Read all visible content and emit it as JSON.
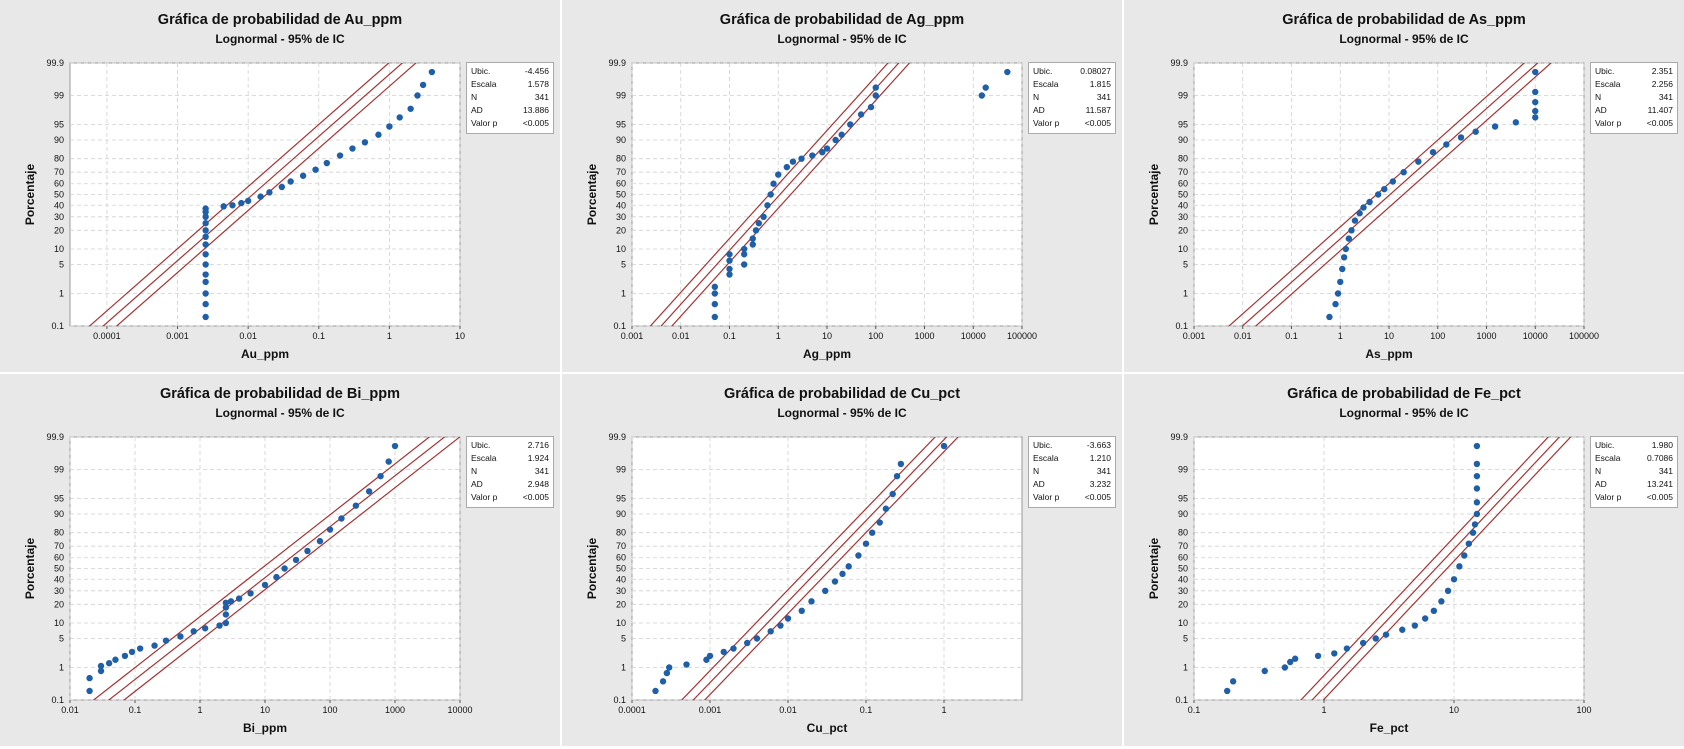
{
  "chart_data": [
    {
      "type": "scatter",
      "title": "Gráfica de probabilidad de Au_ppm",
      "subtitle": "Lognormal - 95% de IC",
      "xlabel": "Au_ppm",
      "ylabel": "Porcentaje",
      "x_scale": "log",
      "y_scale": "probability",
      "xlim": [
        3e-05,
        10
      ],
      "x_ticks": [
        "0.0001",
        "0.001",
        "0.01",
        "0.1",
        "1",
        "10"
      ],
      "x_tick_values": [
        0.0001,
        0.001,
        0.01,
        0.1,
        1,
        10
      ],
      "y_ticks": [
        "0.1",
        "1",
        "5",
        "10",
        "20",
        "30",
        "40",
        "50",
        "60",
        "70",
        "80",
        "90",
        "95",
        "99",
        "99.9"
      ],
      "stats": {
        "loc": "-4.456",
        "scale": "1.578",
        "n": "341",
        "ad": "13.886",
        "p": "<0.005"
      },
      "loc": -4.456,
      "scale": 1.578,
      "points": [
        [
          0.0025,
          0.2
        ],
        [
          0.0025,
          0.5
        ],
        [
          0.0025,
          1
        ],
        [
          0.0025,
          2
        ],
        [
          0.0025,
          3
        ],
        [
          0.0025,
          5
        ],
        [
          0.0025,
          8
        ],
        [
          0.0025,
          12
        ],
        [
          0.0025,
          16
        ],
        [
          0.0025,
          20
        ],
        [
          0.0025,
          25
        ],
        [
          0.0025,
          30
        ],
        [
          0.0025,
          34
        ],
        [
          0.0025,
          37
        ],
        [
          0.0045,
          39
        ],
        [
          0.006,
          40
        ],
        [
          0.008,
          42
        ],
        [
          0.01,
          44
        ],
        [
          0.015,
          48
        ],
        [
          0.02,
          52
        ],
        [
          0.03,
          57
        ],
        [
          0.04,
          62
        ],
        [
          0.06,
          67
        ],
        [
          0.09,
          72
        ],
        [
          0.13,
          77
        ],
        [
          0.2,
          82
        ],
        [
          0.3,
          86
        ],
        [
          0.45,
          89
        ],
        [
          0.7,
          92
        ],
        [
          1.0,
          94.5
        ],
        [
          1.4,
          96.5
        ],
        [
          2.0,
          97.8
        ],
        [
          2.5,
          99
        ],
        [
          3.0,
          99.5
        ],
        [
          4.0,
          99.8
        ]
      ]
    },
    {
      "type": "scatter",
      "title": "Gráfica de probabilidad de Ag_ppm",
      "subtitle": "Lognormal - 95% de IC",
      "xlabel": "Ag_ppm",
      "ylabel": "Porcentaje",
      "x_scale": "log",
      "y_scale": "probability",
      "xlim": [
        0.001,
        100000
      ],
      "x_ticks": [
        "0.001",
        "0.01",
        "0.1",
        "1",
        "10",
        "100",
        "1000",
        "10000",
        "100000"
      ],
      "x_tick_values": [
        0.001,
        0.01,
        0.1,
        1,
        10,
        100,
        1000,
        10000,
        100000
      ],
      "y_ticks": [
        "0.1",
        "1",
        "5",
        "10",
        "20",
        "30",
        "40",
        "50",
        "60",
        "70",
        "80",
        "90",
        "95",
        "99",
        "99.9"
      ],
      "stats": {
        "loc": "0.08027",
        "scale": "1.815",
        "n": "341",
        "ad": "11.587",
        "p": "<0.005"
      },
      "loc": 0.08027,
      "scale": 1.815,
      "points": [
        [
          0.05,
          0.2
        ],
        [
          0.05,
          0.5
        ],
        [
          0.05,
          1
        ],
        [
          0.05,
          1.5
        ],
        [
          0.1,
          3
        ],
        [
          0.1,
          4
        ],
        [
          0.1,
          6
        ],
        [
          0.1,
          8
        ],
        [
          0.2,
          5
        ],
        [
          0.2,
          8
        ],
        [
          0.2,
          10
        ],
        [
          0.3,
          12
        ],
        [
          0.3,
          15
        ],
        [
          0.35,
          20
        ],
        [
          0.4,
          25
        ],
        [
          0.5,
          30
        ],
        [
          0.6,
          40
        ],
        [
          0.7,
          50
        ],
        [
          0.8,
          60
        ],
        [
          1.0,
          68
        ],
        [
          1.5,
          74
        ],
        [
          2,
          78
        ],
        [
          3,
          80
        ],
        [
          5,
          82
        ],
        [
          8,
          84
        ],
        [
          10,
          86
        ],
        [
          15,
          90
        ],
        [
          20,
          92
        ],
        [
          30,
          95
        ],
        [
          50,
          97
        ],
        [
          80,
          98
        ],
        [
          100,
          99
        ],
        [
          100,
          99.4
        ],
        [
          15000,
          99
        ],
        [
          18000,
          99.4
        ],
        [
          50000,
          99.8
        ]
      ]
    },
    {
      "type": "scatter",
      "title": "Gráfica de probabilidad de As_ppm",
      "subtitle": "Lognormal - 95% de IC",
      "xlabel": "As_ppm",
      "ylabel": "Porcentaje",
      "x_scale": "log",
      "y_scale": "probability",
      "xlim": [
        0.001,
        100000
      ],
      "x_ticks": [
        "0.001",
        "0.01",
        "0.1",
        "1",
        "10",
        "100",
        "1000",
        "10000",
        "100000"
      ],
      "x_tick_values": [
        0.001,
        0.01,
        0.1,
        1,
        10,
        100,
        1000,
        10000,
        100000
      ],
      "y_ticks": [
        "0.1",
        "1",
        "5",
        "10",
        "20",
        "30",
        "40",
        "50",
        "60",
        "70",
        "80",
        "90",
        "95",
        "99",
        "99.9"
      ],
      "stats": {
        "loc": "2.351",
        "scale": "2.256",
        "n": "341",
        "ad": "11.407",
        "p": "<0.005"
      },
      "loc": 2.351,
      "scale": 2.256,
      "points": [
        [
          0.6,
          0.2
        ],
        [
          0.8,
          0.5
        ],
        [
          0.9,
          1
        ],
        [
          1.0,
          2
        ],
        [
          1.1,
          4
        ],
        [
          1.2,
          7
        ],
        [
          1.3,
          10
        ],
        [
          1.5,
          15
        ],
        [
          1.7,
          20
        ],
        [
          2.0,
          27
        ],
        [
          2.5,
          33
        ],
        [
          3,
          38
        ],
        [
          4,
          43
        ],
        [
          6,
          50
        ],
        [
          8,
          55
        ],
        [
          12,
          62
        ],
        [
          20,
          70
        ],
        [
          40,
          78
        ],
        [
          80,
          84
        ],
        [
          150,
          88
        ],
        [
          300,
          91
        ],
        [
          600,
          93
        ],
        [
          1500,
          94.5
        ],
        [
          4000,
          95.5
        ],
        [
          10000,
          96.5
        ],
        [
          10000,
          97.5
        ],
        [
          10000,
          98.5
        ],
        [
          10000,
          99.2
        ],
        [
          10000,
          99.8
        ]
      ]
    },
    {
      "type": "scatter",
      "title": "Gráfica de probabilidad de Bi_ppm",
      "subtitle": "Lognormal - 95% de IC",
      "xlabel": "Bi_ppm",
      "ylabel": "Porcentaje",
      "x_scale": "log",
      "y_scale": "probability",
      "xlim": [
        0.01,
        10000
      ],
      "x_ticks": [
        "0.01",
        "0.1",
        "1",
        "10",
        "100",
        "1000",
        "10000"
      ],
      "x_tick_values": [
        0.01,
        0.1,
        1,
        10,
        100,
        1000,
        10000
      ],
      "y_ticks": [
        "0.1",
        "1",
        "5",
        "10",
        "20",
        "30",
        "40",
        "50",
        "60",
        "70",
        "80",
        "90",
        "95",
        "99",
        "99.9"
      ],
      "stats": {
        "loc": "2.716",
        "scale": "1.924",
        "n": "341",
        "ad": "2.948",
        "p": "<0.005"
      },
      "loc": 2.716,
      "scale": 1.924,
      "points": [
        [
          0.02,
          0.2
        ],
        [
          0.02,
          0.5
        ],
        [
          0.03,
          0.8
        ],
        [
          0.03,
          1.1
        ],
        [
          0.04,
          1.3
        ],
        [
          0.05,
          1.6
        ],
        [
          0.07,
          2
        ],
        [
          0.09,
          2.5
        ],
        [
          0.12,
          3
        ],
        [
          0.2,
          3.5
        ],
        [
          0.3,
          4.5
        ],
        [
          0.5,
          5.5
        ],
        [
          0.8,
          7
        ],
        [
          1.2,
          8
        ],
        [
          2,
          9
        ],
        [
          2.5,
          10
        ],
        [
          2.5,
          14
        ],
        [
          2.5,
          18
        ],
        [
          2.5,
          21
        ],
        [
          3,
          22
        ],
        [
          4,
          24
        ],
        [
          6,
          28
        ],
        [
          10,
          35
        ],
        [
          15,
          42
        ],
        [
          20,
          50
        ],
        [
          30,
          58
        ],
        [
          45,
          66
        ],
        [
          70,
          74
        ],
        [
          100,
          82
        ],
        [
          150,
          88
        ],
        [
          250,
          93
        ],
        [
          400,
          96.5
        ],
        [
          600,
          98.5
        ],
        [
          800,
          99.4
        ],
        [
          1000,
          99.8
        ]
      ]
    },
    {
      "type": "scatter",
      "title": "Gráfica de probabilidad de Cu_pct",
      "subtitle": "Lognormal - 95% de IC",
      "xlabel": "Cu_pct",
      "ylabel": "Porcentaje",
      "x_scale": "log",
      "y_scale": "probability",
      "xlim": [
        0.0001,
        10
      ],
      "x_ticks": [
        "0.0001",
        "0.001",
        "0.01",
        "0.1",
        "1"
      ],
      "x_tick_values": [
        0.0001,
        0.001,
        0.01,
        0.1,
        1
      ],
      "y_ticks": [
        "0.1",
        "1",
        "5",
        "10",
        "20",
        "30",
        "40",
        "50",
        "60",
        "70",
        "80",
        "90",
        "95",
        "99",
        "99.9"
      ],
      "stats": {
        "loc": "-3.663",
        "scale": "1.210",
        "n": "341",
        "ad": "3.232",
        "p": "<0.005"
      },
      "loc": -3.663,
      "scale": 1.21,
      "points": [
        [
          0.0002,
          0.2
        ],
        [
          0.00025,
          0.4
        ],
        [
          0.00028,
          0.7
        ],
        [
          0.0003,
          1
        ],
        [
          0.0005,
          1.2
        ],
        [
          0.0009,
          1.6
        ],
        [
          0.001,
          2
        ],
        [
          0.0015,
          2.5
        ],
        [
          0.002,
          3
        ],
        [
          0.003,
          4
        ],
        [
          0.004,
          5
        ],
        [
          0.006,
          7
        ],
        [
          0.008,
          9
        ],
        [
          0.01,
          12
        ],
        [
          0.015,
          16
        ],
        [
          0.02,
          22
        ],
        [
          0.03,
          30
        ],
        [
          0.04,
          38
        ],
        [
          0.05,
          45
        ],
        [
          0.06,
          52
        ],
        [
          0.08,
          62
        ],
        [
          0.1,
          72
        ],
        [
          0.12,
          80
        ],
        [
          0.15,
          86
        ],
        [
          0.18,
          92
        ],
        [
          0.22,
          96
        ],
        [
          0.25,
          98.5
        ],
        [
          0.28,
          99.3
        ],
        [
          1.0,
          99.8
        ]
      ]
    },
    {
      "type": "scatter",
      "title": "Gráfica de probabilidad de Fe_pct",
      "subtitle": "Lognormal - 95% de IC",
      "xlabel": "Fe_pct",
      "ylabel": "Porcentaje",
      "x_scale": "log",
      "y_scale": "probability",
      "xlim": [
        0.1,
        100
      ],
      "x_ticks": [
        "0.1",
        "1",
        "10",
        "100"
      ],
      "x_tick_values": [
        0.1,
        1,
        10,
        100
      ],
      "y_ticks": [
        "0.1",
        "1",
        "5",
        "10",
        "20",
        "30",
        "40",
        "50",
        "60",
        "70",
        "80",
        "90",
        "95",
        "99",
        "99.9"
      ],
      "stats": {
        "loc": "1.980",
        "scale": "0.7086",
        "n": "341",
        "ad": "13.241",
        "p": "<0.005"
      },
      "loc": 1.98,
      "scale": 0.7086,
      "points": [
        [
          0.18,
          0.2
        ],
        [
          0.2,
          0.4
        ],
        [
          0.35,
          0.8
        ],
        [
          0.5,
          1
        ],
        [
          0.55,
          1.4
        ],
        [
          0.6,
          1.7
        ],
        [
          0.9,
          2
        ],
        [
          1.2,
          2.3
        ],
        [
          1.5,
          3
        ],
        [
          2,
          4
        ],
        [
          2.5,
          5
        ],
        [
          3,
          6
        ],
        [
          4,
          7.5
        ],
        [
          5,
          9
        ],
        [
          6,
          12
        ],
        [
          7,
          16
        ],
        [
          8,
          22
        ],
        [
          9,
          30
        ],
        [
          10,
          40
        ],
        [
          11,
          52
        ],
        [
          12,
          62
        ],
        [
          13,
          72
        ],
        [
          14,
          80
        ],
        [
          14.5,
          85
        ],
        [
          15,
          90
        ],
        [
          15,
          94
        ],
        [
          15,
          97
        ],
        [
          15,
          98.5
        ],
        [
          15,
          99.3
        ],
        [
          15,
          99.8
        ]
      ]
    }
  ],
  "legend_labels": {
    "loc": "Ubic.",
    "scale": "Escala",
    "n": "N",
    "ad": "AD",
    "p": "Valor p"
  },
  "colors": {
    "points": "#1f5fa8",
    "lines": "#a83232",
    "panel_bg": "#e8e8e8",
    "plot_bg": "#ffffff",
    "grid": "#d0d0d0"
  }
}
